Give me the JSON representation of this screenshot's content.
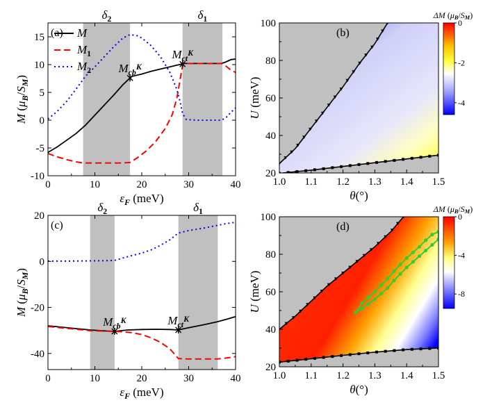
{
  "chart_data": [
    {
      "panel": "(a)",
      "type": "line",
      "xlabel": "ε_F (meV)",
      "ylabel": "M (μ_B/S_M)",
      "xlim": [
        0,
        40
      ],
      "ylim": [
        -10,
        17.5
      ],
      "xticks": [
        "0",
        "10",
        "20",
        "30",
        "40"
      ],
      "yticks": [
        "-10",
        "-5",
        "0",
        "5",
        "10",
        "15"
      ],
      "shaded_regions": [
        {
          "label": "δ2",
          "x": [
            7.5,
            17.5
          ]
        },
        {
          "label": "δ1",
          "x": [
            28.7,
            37.2
          ]
        }
      ],
      "legend": {
        "position": "top-left",
        "entries": [
          "M",
          "M1",
          "M2"
        ]
      },
      "series": [
        {
          "name": "M",
          "style": "solid",
          "color": "#000000",
          "x": [
            0,
            2,
            4,
            6,
            8,
            10,
            12,
            14,
            16,
            17.5,
            18,
            20,
            22,
            24,
            26,
            28.5,
            29,
            32,
            35,
            37,
            38,
            39,
            40
          ],
          "y": [
            -5.8,
            -4.8,
            -3.6,
            -2.4,
            -0.9,
            0.9,
            2.7,
            4.5,
            6.4,
            7.6,
            7.9,
            8.3,
            8.8,
            9.2,
            9.6,
            10.1,
            10.2,
            10.2,
            10.2,
            10.2,
            10.5,
            10.9,
            11.0
          ]
        },
        {
          "name": "M1",
          "style": "dashed",
          "color": "#ff0000",
          "x": [
            0,
            2,
            4,
            6,
            7.5,
            10,
            12,
            14,
            16,
            17.5,
            19,
            21,
            23,
            25,
            26.5,
            27.5,
            28.2,
            28.7,
            29,
            32,
            35,
            37,
            38,
            39,
            40
          ],
          "y": [
            -6.0,
            -6.6,
            -7.1,
            -7.5,
            -7.7,
            -7.7,
            -7.7,
            -7.7,
            -7.7,
            -7.6,
            -6.8,
            -5.5,
            -3.8,
            -1.5,
            1.0,
            4.0,
            7.5,
            9.8,
            10.2,
            10.2,
            10.2,
            10.2,
            9.7,
            9.0,
            8.6
          ]
        },
        {
          "name": "M2",
          "style": "dotted",
          "color": "#0000ff",
          "x": [
            0,
            2,
            4,
            6,
            8,
            10,
            12,
            14,
            16,
            17.5,
            19,
            20,
            22,
            24,
            26,
            27.5,
            28.2,
            28.7,
            29.5,
            32,
            35,
            37,
            38,
            39,
            40
          ],
          "y": [
            0.2,
            1.6,
            3.4,
            5.6,
            7.9,
            9.6,
            11.4,
            13.2,
            14.8,
            15.4,
            15.2,
            14.8,
            13.4,
            11.4,
            8.6,
            5.5,
            3.2,
            1.2,
            0.1,
            0.0,
            0.0,
            0.0,
            0.5,
            1.4,
            2.2
          ]
        }
      ],
      "annotations": [
        {
          "text": "M^K_cb",
          "x": 17.5,
          "y": 7.6
        },
        {
          "text": "M^K_ct",
          "x": 28.7,
          "y": 10.1
        }
      ]
    },
    {
      "panel": "(b)",
      "type": "heatmap",
      "xlabel": "θ(°)",
      "ylabel": "U (meV)",
      "xlim": [
        1.0,
        1.5
      ],
      "ylim": [
        20,
        100
      ],
      "xticks": [
        "1.0",
        "1.1",
        "1.2",
        "1.3",
        "1.4",
        "1.5"
      ],
      "yticks": [
        "20",
        "40",
        "60",
        "80",
        "100"
      ],
      "colorbar": {
        "label": "ΔM (μ_B/S_M)",
        "ticks": [
          "0",
          "-2",
          "-4"
        ],
        "range": [
          -4.6,
          0
        ]
      },
      "boundaries": {
        "upper": {
          "x": [
            1.0,
            1.05,
            1.1,
            1.15,
            1.2,
            1.25,
            1.3,
            1.34
          ],
          "y": [
            25,
            33,
            44,
            55,
            66,
            78,
            89,
            100
          ]
        },
        "lower": {
          "x": [
            1.0,
            1.1,
            1.2,
            1.3,
            1.4,
            1.5
          ],
          "y": [
            19.8,
            21.5,
            23.5,
            25.5,
            27.5,
            29.5
          ]
        }
      }
    },
    {
      "panel": "(c)",
      "type": "line",
      "xlabel": "ε_F (meV)",
      "ylabel": "M (μ_B/S_M)",
      "xlim": [
        0,
        40
      ],
      "ylim": [
        -47,
        20
      ],
      "xticks": [
        "0",
        "10",
        "20",
        "30",
        "40"
      ],
      "yticks": [
        "-40",
        "-20",
        "0",
        "20"
      ],
      "shaded_regions": [
        {
          "label": "δ2",
          "x": [
            9.0,
            14.2
          ]
        },
        {
          "label": "δ1",
          "x": [
            27.8,
            36.2
          ]
        }
      ],
      "series": [
        {
          "name": "M",
          "style": "solid",
          "color": "#000000",
          "x": [
            0,
            3,
            6,
            9,
            12,
            14.2,
            17,
            20,
            23,
            26,
            27.8,
            30,
            33,
            36,
            38,
            40
          ],
          "y": [
            -28.0,
            -28.6,
            -29.2,
            -29.8,
            -30.2,
            -30.4,
            -29.8,
            -29.6,
            -29.5,
            -29.6,
            -29.8,
            -28.8,
            -27.6,
            -26.3,
            -25.2,
            -24.0
          ]
        },
        {
          "name": "M1",
          "style": "dashed",
          "color": "#ff0000",
          "x": [
            0,
            3,
            6,
            9,
            12,
            14.2,
            16,
            18,
            20,
            22,
            24,
            26,
            27.8,
            30,
            33,
            36,
            38,
            40
          ],
          "y": [
            -28.3,
            -28.9,
            -29.5,
            -30.1,
            -30.3,
            -30.4,
            -30.6,
            -31.0,
            -31.8,
            -33.2,
            -35.2,
            -38.0,
            -42.2,
            -42.4,
            -42.4,
            -42.4,
            -42.0,
            -41.4
          ]
        },
        {
          "name": "M2",
          "style": "dotted",
          "color": "#0000ff",
          "x": [
            0,
            4,
            8,
            12,
            14.2,
            16,
            18,
            20,
            22,
            24,
            26,
            27.8,
            30,
            33,
            36,
            38,
            40
          ],
          "y": [
            0.1,
            0.1,
            0.2,
            0.3,
            0.4,
            1.5,
            2.6,
            3.6,
            5.0,
            7.0,
            9.4,
            12.3,
            13.4,
            14.4,
            15.6,
            16.4,
            17.0
          ]
        }
      ],
      "annotations": [
        {
          "text": "M^K_cb",
          "x": 14.2,
          "y": -30.4
        },
        {
          "text": "M^K_ct",
          "x": 27.8,
          "y": -29.8
        }
      ]
    },
    {
      "panel": "(d)",
      "type": "heatmap",
      "xlabel": "θ(°)",
      "ylabel": "U (meV)",
      "xlim": [
        1.0,
        1.5
      ],
      "ylim": [
        20,
        100
      ],
      "xticks": [
        "1.0",
        "1.1",
        "1.2",
        "1.3",
        "1.4",
        "1.5"
      ],
      "yticks": [
        "20",
        "40",
        "60",
        "80",
        "100"
      ],
      "colorbar": {
        "label": "ΔM (μ_B/S_M)",
        "ticks": [
          "0",
          "-4",
          "-8"
        ],
        "range": [
          -9.5,
          0
        ]
      },
      "boundaries": {
        "upper": {
          "x": [
            1.0,
            1.05,
            1.1,
            1.15,
            1.2,
            1.25,
            1.3,
            1.35,
            1.39
          ],
          "y": [
            40,
            47,
            55,
            63,
            70,
            77,
            84,
            92,
            100
          ]
        },
        "lower": {
          "x": [
            1.0,
            1.1,
            1.2,
            1.3,
            1.4,
            1.5
          ],
          "y": [
            22.5,
            24.3,
            26.1,
            27.8,
            29.2,
            30.0
          ]
        }
      },
      "green_contour": {
        "x": [
          1.24,
          1.26,
          1.28,
          1.3,
          1.32,
          1.34,
          1.36,
          1.38,
          1.4,
          1.42,
          1.44,
          1.46,
          1.48,
          1.5,
          1.5,
          1.48,
          1.46,
          1.44,
          1.42,
          1.4,
          1.38,
          1.36,
          1.34,
          1.32,
          1.3,
          1.28,
          1.26,
          1.24
        ],
        "y": [
          49,
          51,
          53.5,
          56,
          59,
          62,
          66,
          69.5,
          73,
          76,
          79,
          82,
          85,
          88,
          92,
          90.5,
          87.5,
          84,
          81,
          78,
          74.5,
          71,
          67,
          63.5,
          60,
          57,
          54,
          49
        ]
      }
    }
  ]
}
